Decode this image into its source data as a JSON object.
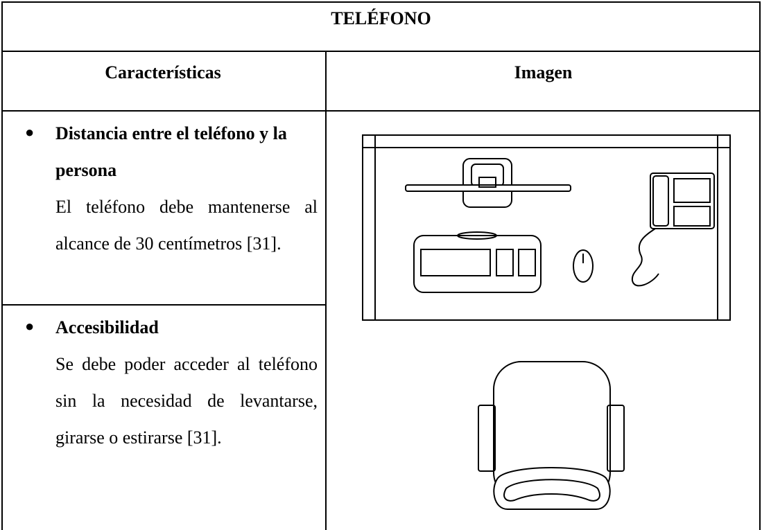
{
  "header": {
    "title": "TELÉFONO"
  },
  "table": {
    "headers": [
      "Características",
      "Imagen"
    ],
    "items": [
      {
        "title": "Distancia entre el teléfono y la persona",
        "text": "El teléfono debe mantenerse al alcance de 30 centímetros [31]."
      },
      {
        "title": "Accesibilidad",
        "text": "Se debe poder acceder al teléfono sin la necesidad de levantarse, girarse o estirarse [31]."
      }
    ]
  }
}
